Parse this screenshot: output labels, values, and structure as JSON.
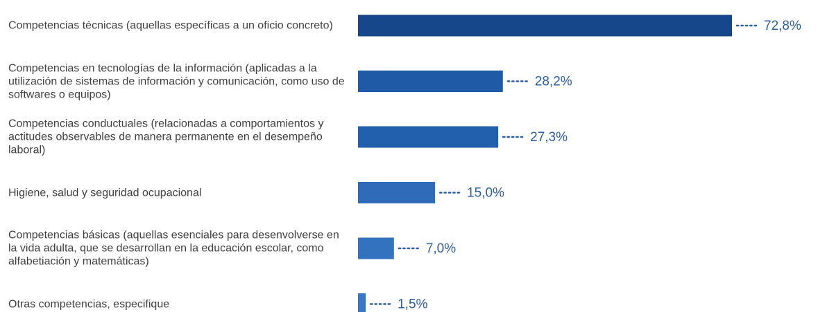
{
  "chart_data": {
    "type": "bar",
    "orientation": "horizontal",
    "categories": [
      "Competencias técnicas (aquellas específicas a un oficio concreto)",
      "Competencias en tecnologías de la información (aplicadas a la utilización de sistemas de información y comunicación, como uso de softwares o equipos)",
      "Competencias conductuales (relacionadas a comportamientos y actitudes observables de manera permanente en el desempeño laboral)",
      "Higiene, salud y seguridad ocupacional",
      "Competencias básicas (aquellas esenciales para desenvolverse en la vida adulta, que se desarrollan en la educación escolar, como alfabetiación y matemáticas)",
      "Otras competencias, especifique"
    ],
    "values": [
      72.8,
      28.2,
      27.3,
      15.0,
      7.0,
      1.5
    ],
    "value_labels": [
      "72,8%",
      "28,2%",
      "27,3%",
      "15,0%",
      "7,0%",
      "1,5%"
    ],
    "colors": [
      "#17478b",
      "#1f5aa6",
      "#2260ad",
      "#2f6bb8",
      "#3372bf",
      "#3877c4"
    ]
  }
}
